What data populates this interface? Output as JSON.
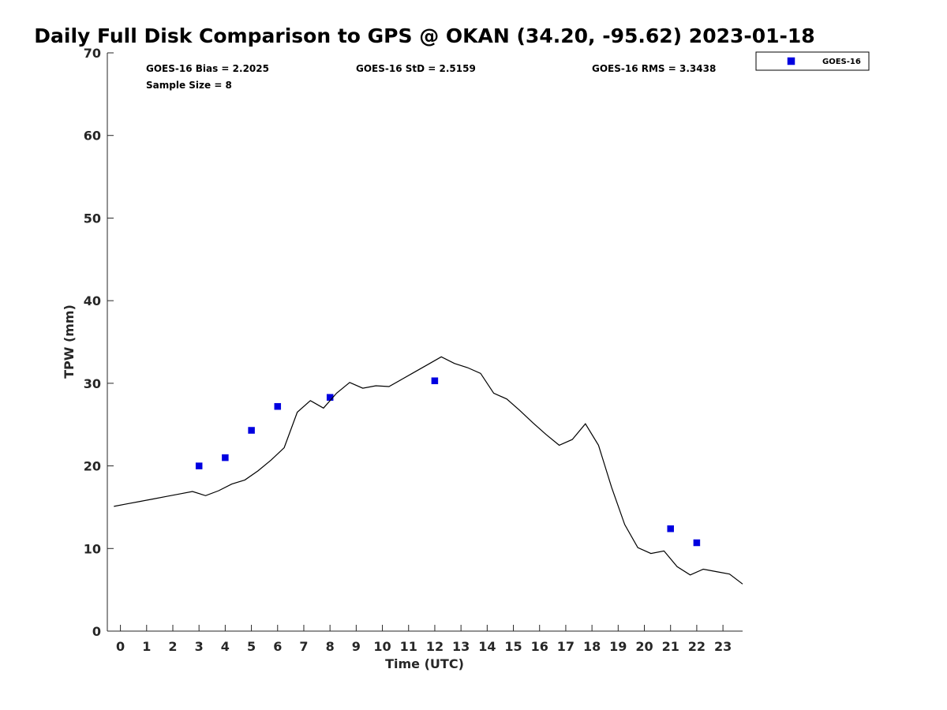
{
  "chart_data": {
    "type": "scatter",
    "title": "Daily Full Disk Comparison to GPS @ OKAN (34.20, -95.62) 2023-01-18",
    "xlabel": "Time (UTC)",
    "ylabel": "TPW (mm)",
    "xlim": [
      -0.5,
      23.75
    ],
    "ylim": [
      0,
      70
    ],
    "x_ticks": [
      0,
      1,
      2,
      3,
      4,
      5,
      6,
      7,
      8,
      9,
      10,
      11,
      12,
      13,
      14,
      15,
      16,
      17,
      18,
      19,
      20,
      21,
      22,
      23
    ],
    "y_ticks": [
      0,
      10,
      20,
      30,
      40,
      50,
      60,
      70
    ],
    "grid": false,
    "legend_position": "top-right-outside",
    "stats": {
      "bias": "GOES-16 Bias = 2.2025",
      "std": "GOES-16 StD = 2.5159",
      "rms": "GOES-16 RMS = 3.3438",
      "sample": "Sample Size = 8"
    },
    "series": [
      {
        "name": "GOES-16",
        "kind": "scatter",
        "marker": "square",
        "color": "#0000e0",
        "x": [
          3,
          4,
          5,
          6,
          8,
          12,
          21,
          22
        ],
        "y": [
          20.0,
          21.0,
          24.3,
          27.2,
          28.3,
          30.3,
          12.4,
          10.7
        ]
      },
      {
        "kind": "line",
        "color": "#000000",
        "x": [
          -0.25,
          0.25,
          0.75,
          1.25,
          1.75,
          2.25,
          2.75,
          3.25,
          3.75,
          4.25,
          4.75,
          5.25,
          5.75,
          6.25,
          6.75,
          7.25,
          7.75,
          8.25,
          8.75,
          9.25,
          9.75,
          10.25,
          10.75,
          11.25,
          11.75,
          12.25,
          12.75,
          13.25,
          13.75,
          14.25,
          14.75,
          15.25,
          15.75,
          16.25,
          16.75,
          17.25,
          17.75,
          18.25,
          18.75,
          19.25,
          19.75,
          20.25,
          20.75,
          21.25,
          21.75,
          22.25,
          22.75,
          23.25,
          23.75
        ],
        "y": [
          15.1,
          15.4,
          15.7,
          16.0,
          16.3,
          16.6,
          16.9,
          16.4,
          17.0,
          17.8,
          18.3,
          19.4,
          20.7,
          22.2,
          26.5,
          27.9,
          27.0,
          28.8,
          30.1,
          29.4,
          29.7,
          29.6,
          30.5,
          31.4,
          32.3,
          33.2,
          32.4,
          31.9,
          31.2,
          28.8,
          28.1,
          26.7,
          25.2,
          23.8,
          22.5,
          23.2,
          25.1,
          22.5,
          17.4,
          12.9,
          10.1,
          9.4,
          9.7,
          7.8,
          6.8,
          7.5,
          7.2,
          6.9,
          5.7
        ]
      }
    ]
  }
}
